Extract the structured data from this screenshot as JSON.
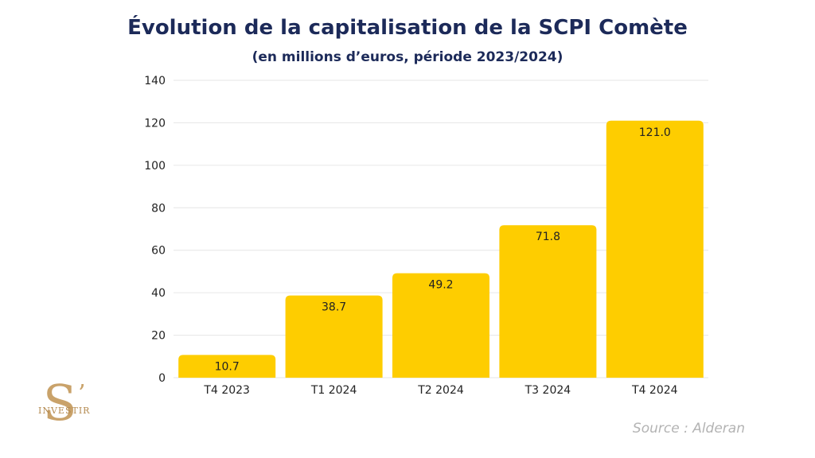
{
  "chart_data": {
    "type": "bar",
    "title": "Évolution de la capitalisation de la SCPI Comète",
    "subtitle": "(en millions d’euros, période 2023/2024)",
    "categories": [
      "T4 2023",
      "T1 2024",
      "T2 2024",
      "T3 2024",
      "T4 2024"
    ],
    "values": [
      10.7,
      38.7,
      49.2,
      71.8,
      121.0
    ],
    "value_labels": [
      "10.7",
      "38.7",
      "49.2",
      "71.8",
      "121.0"
    ],
    "ylim": [
      0,
      140
    ],
    "yticks": [
      0,
      20,
      40,
      60,
      80,
      100,
      120,
      140
    ],
    "xlabel": "",
    "ylabel": "",
    "grid": true,
    "bar_color": "#fecd00"
  },
  "source": "Source : Alderan",
  "logo": {
    "letter": "S",
    "apostrophe": "’",
    "word": "INVESTIR"
  },
  "colors": {
    "title": "#1c2a59",
    "bar": "#fecd00",
    "grid": "#e6e6e6",
    "source": "#b3b3b3",
    "logo_gold": "#c9a26a"
  }
}
